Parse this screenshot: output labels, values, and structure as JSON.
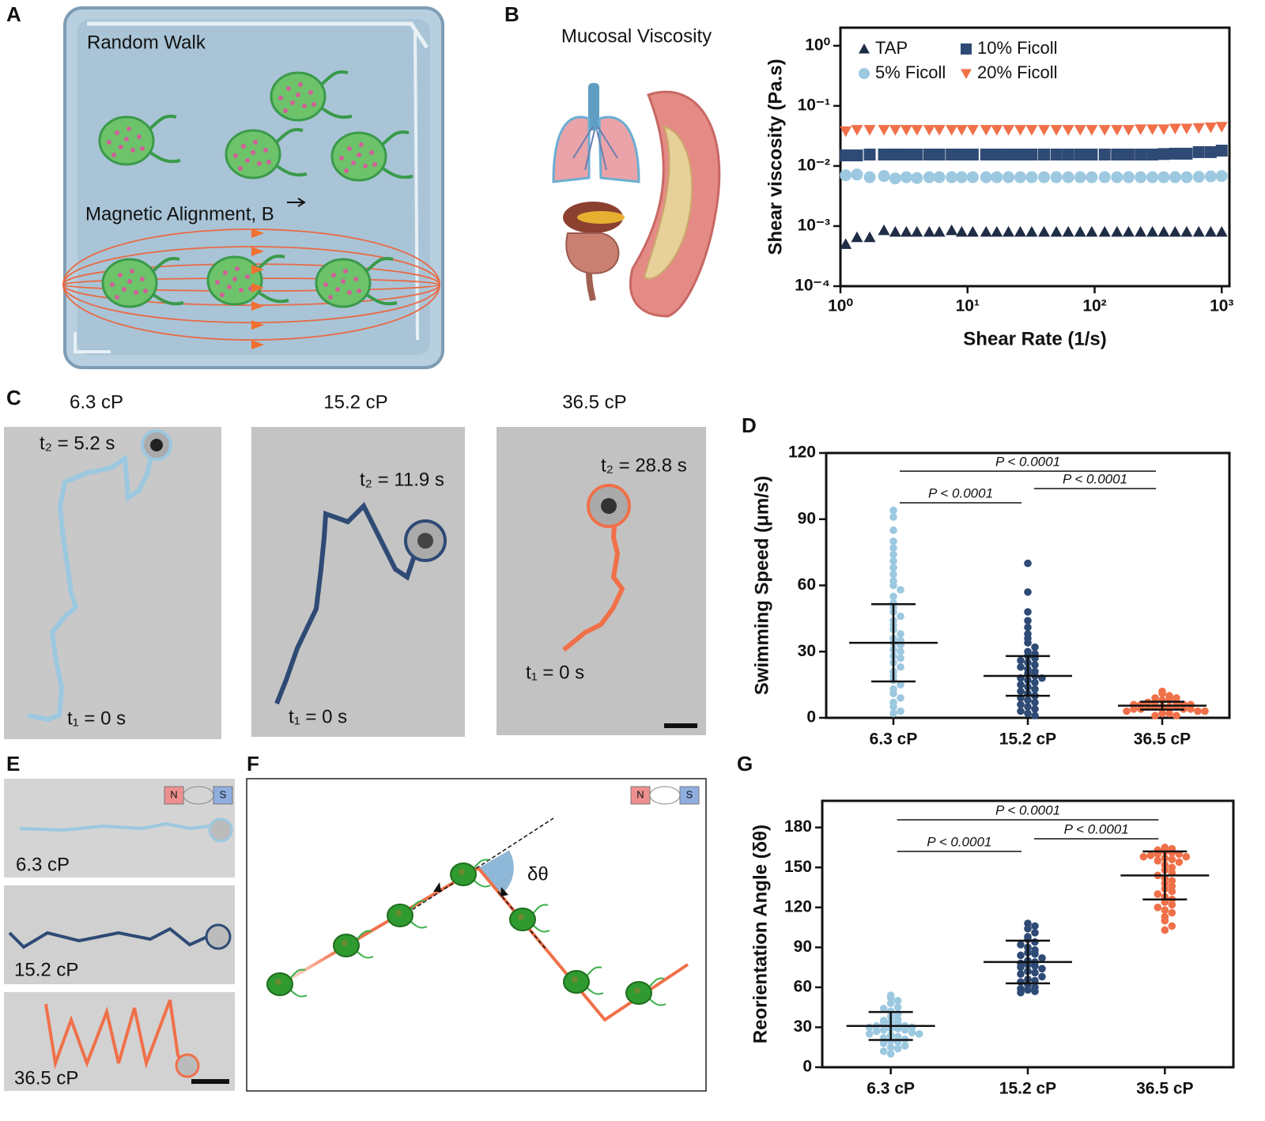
{
  "panels": {
    "A": {
      "label": "A",
      "random_walk": "Random Walk",
      "magnetic_alignment": "Magnetic Alignment, B"
    },
    "B": {
      "label": "B",
      "illustration_title": "Mucosal Viscosity"
    },
    "C": {
      "label": "C",
      "images": [
        {
          "title": "6.3 cP",
          "t2": "t₂ = 5.2 s",
          "t1": "t₁ = 0 s"
        },
        {
          "title": "15.2 cP",
          "t2": "t₂ = 11.9 s",
          "t1": "t₁ = 0 s"
        },
        {
          "title": "36.5 cP",
          "t2": "t₂ = 28.8 s",
          "t1": "t₁ = 0 s"
        }
      ]
    },
    "D": {
      "label": "D"
    },
    "E": {
      "label": "E",
      "images": [
        "6.3 cP",
        "15.2 cP",
        "36.5 cP"
      ],
      "magnet_n": "N",
      "magnet_s": "S"
    },
    "F": {
      "label": "F",
      "angle": "δθ",
      "magnet_n": "N",
      "magnet_s": "S"
    },
    "G": {
      "label": "G"
    }
  },
  "chart_data": [
    {
      "type": "scatter",
      "log_x": true,
      "log_y": true,
      "xlabel": "Shear Rate (1/s)",
      "ylabel": "Shear viscosity (Pa.s)",
      "xlim": [
        1,
        1150
      ],
      "ylim": [
        0.0001,
        2
      ],
      "xticks": [
        {
          "value": 1,
          "label": "10⁰"
        },
        {
          "value": 10,
          "label": "10¹"
        },
        {
          "value": 100,
          "label": "10²"
        },
        {
          "value": 1000,
          "label": "10³"
        }
      ],
      "yticks": [
        {
          "value": 0.0001,
          "label": "10⁻⁴"
        },
        {
          "value": 0.001,
          "label": "10⁻³"
        },
        {
          "value": 0.01,
          "label": "10⁻²"
        },
        {
          "value": 0.1,
          "label": "10⁻¹"
        },
        {
          "value": 1,
          "label": "10⁰"
        }
      ],
      "x": [
        1.1,
        1.35,
        1.7,
        2.2,
        2.7,
        3.3,
        4,
        5,
        6,
        7.5,
        9,
        11,
        14,
        17,
        21,
        26,
        32,
        40,
        50,
        62,
        77,
        95,
        120,
        150,
        185,
        230,
        285,
        350,
        430,
        530,
        660,
        820,
        1000
      ],
      "series": [
        {
          "name": "TAP",
          "color": "#1f2d45",
          "marker": "triangle",
          "values": [
            0.0005,
            0.00065,
            0.00065,
            0.00085,
            0.0008,
            0.0008,
            0.0008,
            0.0008,
            0.0008,
            0.00085,
            0.0008,
            0.0008,
            0.0008,
            0.0008,
            0.0008,
            0.0008,
            0.0008,
            0.0008,
            0.0008,
            0.0008,
            0.0008,
            0.0008,
            0.0008,
            0.0008,
            0.0008,
            0.0008,
            0.0008,
            0.0008,
            0.0008,
            0.0008,
            0.0008,
            0.0008,
            0.0008
          ]
        },
        {
          "name": "5% Ficoll",
          "color": "#9cc8e0",
          "marker": "circle",
          "values": [
            0.007,
            0.0072,
            0.0065,
            0.0068,
            0.0062,
            0.0065,
            0.0063,
            0.0065,
            0.0065,
            0.0065,
            0.0065,
            0.0065,
            0.0065,
            0.0065,
            0.0065,
            0.0065,
            0.0065,
            0.0065,
            0.0065,
            0.0065,
            0.0065,
            0.0065,
            0.0065,
            0.0065,
            0.0065,
            0.0065,
            0.0065,
            0.0065,
            0.0065,
            0.0065,
            0.0066,
            0.0067,
            0.0068
          ]
        },
        {
          "name": "10% Ficoll",
          "color": "#2e4a75",
          "marker": "square",
          "values": [
            0.015,
            0.015,
            0.0155,
            0.0155,
            0.0155,
            0.0155,
            0.0155,
            0.0155,
            0.0155,
            0.0155,
            0.0155,
            0.0155,
            0.0155,
            0.0155,
            0.0155,
            0.0155,
            0.0155,
            0.0155,
            0.0155,
            0.0155,
            0.0155,
            0.0155,
            0.0155,
            0.0155,
            0.0155,
            0.0155,
            0.0155,
            0.0158,
            0.016,
            0.016,
            0.017,
            0.017,
            0.018
          ]
        },
        {
          "name": "20% Ficoll",
          "color": "#f07049",
          "marker": "triangle-down",
          "values": [
            0.038,
            0.04,
            0.04,
            0.04,
            0.04,
            0.04,
            0.04,
            0.04,
            0.04,
            0.04,
            0.04,
            0.04,
            0.04,
            0.04,
            0.04,
            0.04,
            0.04,
            0.04,
            0.04,
            0.04,
            0.04,
            0.04,
            0.04,
            0.04,
            0.04,
            0.041,
            0.041,
            0.041,
            0.042,
            0.042,
            0.043,
            0.044,
            0.045
          ]
        }
      ]
    },
    {
      "type": "dot",
      "ylabel": "Swimming Speed (μm/s)",
      "categories": [
        "6.3 cP",
        "15.2 cP",
        "36.5 cP"
      ],
      "colors": [
        "#9cc8e0",
        "#2e4a75",
        "#f07049"
      ],
      "ylim": [
        0,
        120
      ],
      "yticks": [
        0,
        30,
        60,
        90,
        120
      ],
      "points": [
        [
          94,
          91,
          85,
          80,
          77,
          74,
          71,
          68,
          65,
          62,
          60,
          58,
          55,
          52,
          50,
          48,
          46,
          44,
          42,
          40,
          38,
          36,
          35,
          34,
          33,
          31,
          30,
          28,
          27,
          25,
          23,
          21,
          19,
          17,
          15,
          13,
          11,
          9,
          7,
          5,
          3,
          2
        ],
        [
          70,
          57,
          48,
          44,
          41,
          38,
          36,
          34,
          32,
          30,
          29,
          28,
          27,
          26,
          25,
          24,
          23,
          22,
          21,
          20,
          19,
          18,
          18,
          17,
          16,
          15,
          14,
          13,
          12,
          11,
          10,
          9,
          8,
          7,
          6,
          5,
          4,
          3,
          2,
          1
        ],
        [
          12,
          11,
          10,
          9,
          9,
          8,
          8,
          7,
          7,
          7,
          6,
          6,
          6,
          6,
          5,
          5,
          5,
          5,
          5,
          4,
          4,
          4,
          4,
          3,
          3,
          3,
          2,
          2,
          1,
          1
        ]
      ],
      "means": [
        34,
        19,
        5.5
      ],
      "errors": [
        17.5,
        9,
        1.8
      ],
      "comparisons": [
        {
          "groups": [
            0,
            2
          ],
          "label": "P < 0.0001"
        },
        {
          "groups": [
            1,
            2
          ],
          "label": "P < 0.0001"
        },
        {
          "groups": [
            0,
            1
          ],
          "label": "P < 0.0001"
        }
      ]
    },
    {
      "type": "dot",
      "ylabel": "Reorientation Angle (δθ)",
      "categories": [
        "6.3 cP",
        "15.2 cP",
        "36.5 cP"
      ],
      "colors": [
        "#9cc8e0",
        "#2e4a75",
        "#f07049"
      ],
      "ylim": [
        0,
        200
      ],
      "yticks": [
        0,
        30,
        60,
        90,
        120,
        150,
        180
      ],
      "points": [
        [
          54,
          52,
          50,
          48,
          45,
          44,
          42,
          40,
          38,
          36,
          35,
          34,
          33,
          32,
          31,
          31,
          30,
          30,
          29,
          29,
          28,
          28,
          27,
          26,
          25,
          25,
          24,
          23,
          22,
          21,
          20,
          19,
          18,
          16,
          15,
          14,
          12,
          10
        ],
        [
          108,
          106,
          104,
          101,
          98,
          96,
          94,
          92,
          90,
          88,
          86,
          85,
          84,
          82,
          80,
          79,
          78,
          77,
          76,
          75,
          74,
          72,
          71,
          70,
          68,
          66,
          65,
          64,
          62,
          60,
          59,
          58,
          57,
          56
        ],
        [
          165,
          164,
          163,
          162,
          161,
          160,
          160,
          159,
          158,
          158,
          157,
          156,
          155,
          154,
          152,
          150,
          148,
          146,
          144,
          142,
          140,
          138,
          136,
          134,
          132,
          130,
          128,
          126,
          124,
          122,
          120,
          118,
          116,
          113,
          110,
          106,
          103
        ]
      ],
      "means": [
        31,
        79,
        144
      ],
      "errors": [
        10.5,
        16,
        18
      ],
      "comparisons": [
        {
          "groups": [
            0,
            2
          ],
          "label": "P < 0.0001"
        },
        {
          "groups": [
            1,
            2
          ],
          "label": "P < 0.0001"
        },
        {
          "groups": [
            0,
            1
          ],
          "label": "P < 0.0001"
        }
      ]
    }
  ]
}
